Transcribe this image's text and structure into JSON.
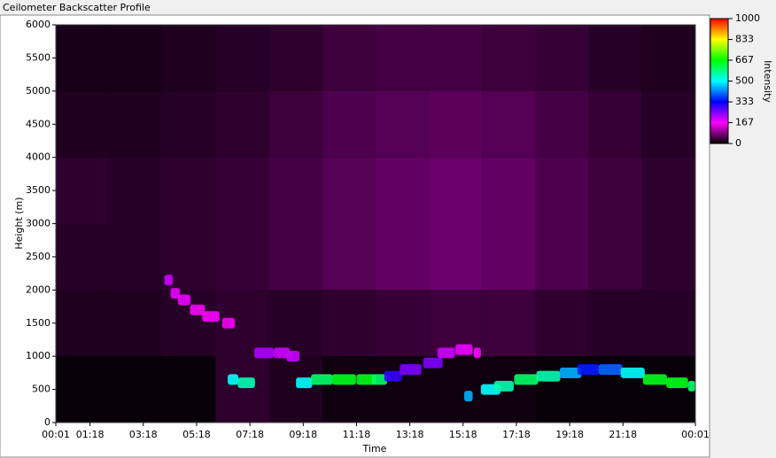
{
  "chart_data": {
    "type": "heatmap",
    "title": "Ceilometer Backscatter Profile",
    "x_label": "Time",
    "y_label": "Height (m)",
    "colorbar_label": "Intensity",
    "xlim": [
      1,
      1441
    ],
    "xticks": [
      {
        "value": 1,
        "label": "00:01"
      },
      {
        "value": 78,
        "label": "01:18"
      },
      {
        "value": 198,
        "label": "03:18"
      },
      {
        "value": 318,
        "label": "05:18"
      },
      {
        "value": 438,
        "label": "07:18"
      },
      {
        "value": 558,
        "label": "09:18"
      },
      {
        "value": 678,
        "label": "11:18"
      },
      {
        "value": 798,
        "label": "13:18"
      },
      {
        "value": 918,
        "label": "15:18"
      },
      {
        "value": 1038,
        "label": "17:18"
      },
      {
        "value": 1158,
        "label": "19:18"
      },
      {
        "value": 1278,
        "label": "21:18"
      },
      {
        "value": 1441,
        "label": "00:01"
      }
    ],
    "ylim": [
      0,
      6000
    ],
    "yticks": [
      0,
      500,
      1000,
      1500,
      2000,
      2500,
      3000,
      3500,
      4000,
      4500,
      5000,
      5500,
      6000
    ],
    "clim": [
      0,
      1000
    ],
    "cticks": [
      0,
      167,
      333,
      500,
      667,
      833,
      1000
    ],
    "colormap": [
      "#000000",
      "#ff00ff",
      "#0000ff",
      "#00ffff",
      "#00ff00",
      "#ffff00",
      "#ff0000"
    ],
    "grid": {
      "x_edges": [
        1,
        121,
        241,
        361,
        481,
        601,
        721,
        841,
        961,
        1081,
        1201,
        1321,
        1441
      ],
      "y_edges": [
        0,
        1000,
        2000,
        3000,
        4000,
        5000,
        6000
      ],
      "values": [
        [
          5,
          5,
          5,
          30,
          20,
          10,
          10,
          10,
          10,
          5,
          5,
          5
        ],
        [
          20,
          20,
          25,
          30,
          25,
          30,
          35,
          40,
          40,
          30,
          25,
          25
        ],
        [
          25,
          25,
          30,
          35,
          45,
          55,
          65,
          70,
          65,
          50,
          40,
          30
        ],
        [
          30,
          25,
          30,
          35,
          45,
          55,
          65,
          70,
          65,
          50,
          40,
          30
        ],
        [
          20,
          20,
          25,
          30,
          40,
          50,
          55,
          60,
          55,
          45,
          35,
          25
        ],
        [
          15,
          15,
          20,
          25,
          30,
          40,
          45,
          45,
          40,
          35,
          25,
          20
        ]
      ]
    },
    "layer": {
      "x": [
        255,
        270,
        290,
        320,
        350,
        390,
        400,
        430,
        470,
        510,
        535,
        560,
        600,
        650,
        700,
        730,
        760,
        800,
        850,
        880,
        920,
        950,
        930,
        980,
        1010,
        1060,
        1110,
        1160,
        1200,
        1250,
        1300,
        1350,
        1400,
        1440
      ],
      "y": [
        2150,
        1950,
        1850,
        1700,
        1600,
        1500,
        650,
        600,
        1050,
        1050,
        1000,
        600,
        650,
        650,
        650,
        650,
        700,
        800,
        900,
        1050,
        1100,
        1050,
        400,
        500,
        550,
        650,
        700,
        750,
        800,
        800,
        750,
        650,
        600,
        550
      ],
      "values": [
        200,
        180,
        180,
        170,
        170,
        160,
        500,
        550,
        220,
        200,
        200,
        500,
        600,
        650,
        650,
        600,
        300,
        250,
        250,
        200,
        180,
        170,
        450,
        500,
        550,
        600,
        550,
        450,
        350,
        400,
        500,
        650,
        650,
        600
      ]
    }
  }
}
